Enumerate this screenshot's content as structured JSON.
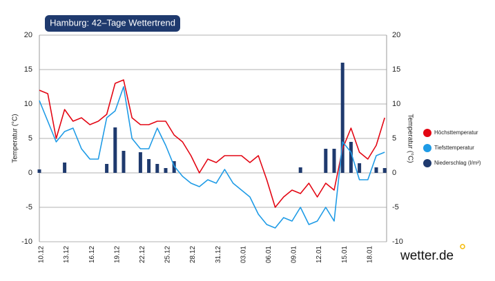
{
  "chart_data": {
    "type": "line",
    "title": "Hamburg: 42–Tage Wettertrend",
    "y_label": "Temperatur (°C)",
    "y2_label": "Temperatur (°C)",
    "categories": [
      "10.12",
      null,
      null,
      "13.12",
      null,
      null,
      "16.12",
      null,
      null,
      "19.12",
      null,
      null,
      "22.12",
      null,
      null,
      "25.12",
      null,
      null,
      "28.12",
      null,
      null,
      "31.12",
      null,
      null,
      "03.01",
      null,
      null,
      "06.01",
      null,
      null,
      "09.01",
      null,
      null,
      "12.01",
      null,
      null,
      "15.01",
      null,
      null,
      "18.01",
      null,
      null
    ],
    "series": [
      {
        "name": "Höchsttemperatur",
        "color": "#e30613",
        "values": [
          12,
          11.5,
          5,
          9.2,
          7.5,
          8,
          7,
          7.5,
          8.5,
          13,
          13.5,
          8,
          7,
          7,
          7.5,
          7.5,
          5.5,
          4.5,
          2.5,
          0,
          2,
          1.5,
          2.5,
          2.5,
          2.5,
          1.5,
          2.5,
          -1,
          -5,
          -3.5,
          -2.5,
          -3,
          -1.5,
          -3.5,
          -1.5,
          -2.5,
          3.5,
          6.5,
          3,
          2,
          4,
          8
        ]
      },
      {
        "name": "Tiefsttemperatur",
        "color": "#1e9be6",
        "values": [
          10.5,
          7.5,
          4.5,
          6,
          6.5,
          3.5,
          2,
          2,
          8,
          9,
          12.5,
          5,
          3.5,
          3.5,
          6.5,
          4,
          1,
          -0.5,
          -1.5,
          -2,
          -1,
          -1.5,
          0.5,
          -1.5,
          -2.5,
          -3.5,
          -6,
          -7.5,
          -8,
          -6.5,
          -7,
          -5,
          -7.5,
          -7,
          -5,
          -7,
          4.5,
          3,
          -1,
          -1,
          2.5,
          3
        ]
      },
      {
        "name": "Niederschlag (l/m²)",
        "color": "#1f3a6e",
        "axis": "y2",
        "values": [
          0.5,
          0,
          0,
          1.5,
          0,
          0,
          0,
          0,
          1.3,
          6.6,
          3.2,
          0,
          3,
          2,
          1.3,
          0.7,
          1.7,
          0,
          0,
          0,
          0,
          0,
          0,
          0,
          0,
          0,
          0,
          0,
          0,
          0,
          0,
          0.8,
          0,
          0,
          3.5,
          3.5,
          16,
          4.5,
          1.4,
          0,
          0.8,
          0.7
        ]
      }
    ],
    "ylim": [
      -10,
      20
    ],
    "yticks": [
      -10,
      -5,
      0,
      5,
      10,
      15,
      20
    ],
    "y2lim": [
      -10,
      20
    ],
    "y2ticks": [
      -10,
      -5,
      0,
      5,
      10,
      15,
      20
    ],
    "grid": true,
    "legend": "right",
    "logo": "wetter.de"
  }
}
